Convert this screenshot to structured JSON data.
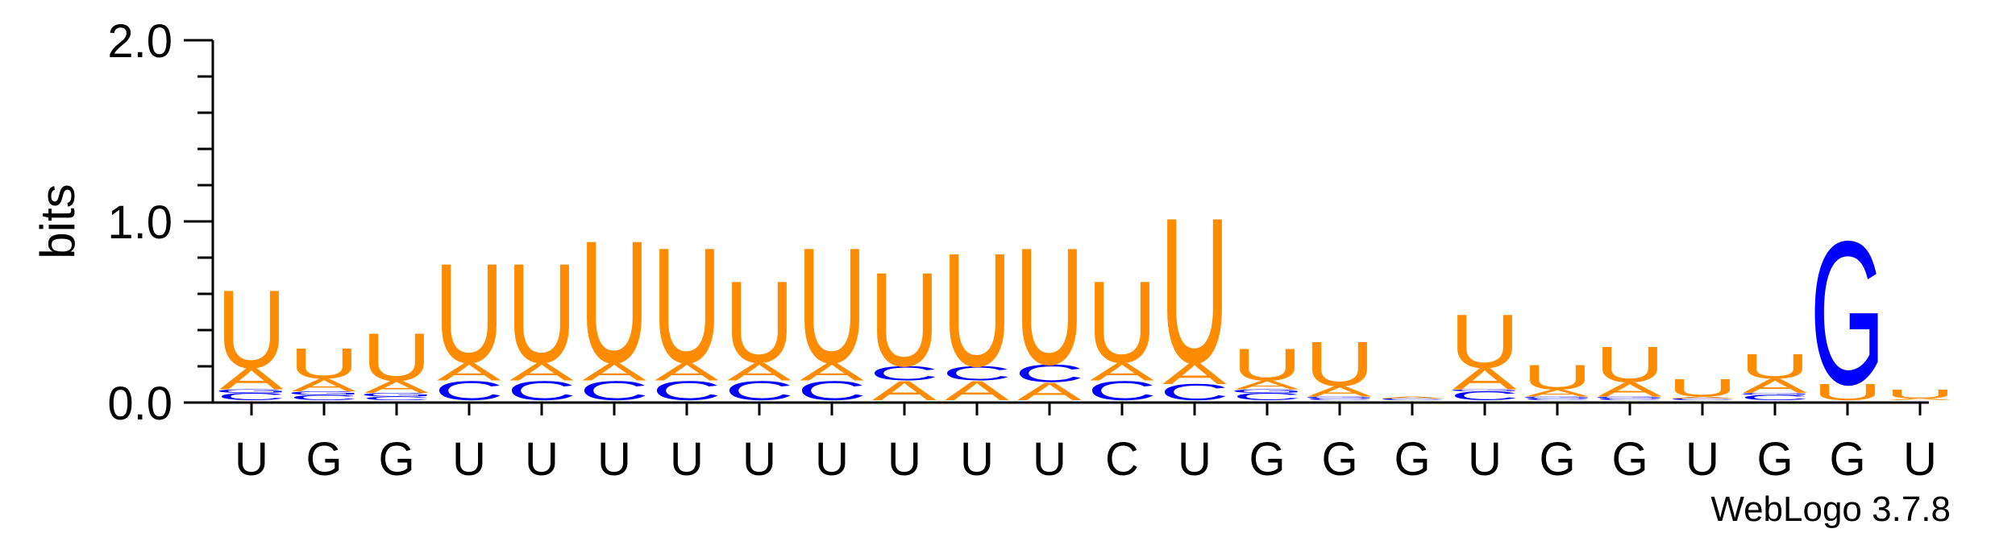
{
  "chart_data": {
    "type": "sequence_logo",
    "ylabel": "bits",
    "ylim": [
      0,
      2.0
    ],
    "yticks": [
      "0.0",
      "1.0",
      "2.0"
    ],
    "credit": "WebLogo 3.7.8",
    "colors": {
      "U": "#ff8c00",
      "A": "#ff8c00",
      "C": "#0000ff",
      "G": "#0000ff"
    },
    "positions": [
      {
        "label": "U",
        "stack": [
          {
            "letter": "C",
            "h": 0.04
          },
          {
            "letter": "G",
            "h": 0.02
          },
          {
            "letter": "A",
            "h": 0.12
          },
          {
            "letter": "U",
            "h": 0.44
          }
        ]
      },
      {
        "label": "G",
        "stack": [
          {
            "letter": "C",
            "h": 0.03
          },
          {
            "letter": "G",
            "h": 0.02
          },
          {
            "letter": "A",
            "h": 0.07
          },
          {
            "letter": "U",
            "h": 0.17
          }
        ]
      },
      {
        "label": "G",
        "stack": [
          {
            "letter": "C",
            "h": 0.02
          },
          {
            "letter": "G",
            "h": 0.02
          },
          {
            "letter": "A",
            "h": 0.07
          },
          {
            "letter": "U",
            "h": 0.27
          }
        ]
      },
      {
        "label": "U",
        "stack": [
          {
            "letter": "C",
            "h": 0.11
          },
          {
            "letter": "A",
            "h": 0.1
          },
          {
            "letter": "U",
            "h": 0.56
          }
        ]
      },
      {
        "label": "U",
        "stack": [
          {
            "letter": "C",
            "h": 0.11
          },
          {
            "letter": "A",
            "h": 0.1
          },
          {
            "letter": "U",
            "h": 0.56
          }
        ]
      },
      {
        "label": "U",
        "stack": [
          {
            "letter": "C",
            "h": 0.11
          },
          {
            "letter": "A",
            "h": 0.1
          },
          {
            "letter": "U",
            "h": 0.69
          }
        ]
      },
      {
        "label": "U",
        "stack": [
          {
            "letter": "C",
            "h": 0.11
          },
          {
            "letter": "A",
            "h": 0.1
          },
          {
            "letter": "U",
            "h": 0.65
          }
        ]
      },
      {
        "label": "U",
        "stack": [
          {
            "letter": "C",
            "h": 0.11
          },
          {
            "letter": "A",
            "h": 0.1
          },
          {
            "letter": "U",
            "h": 0.46
          }
        ]
      },
      {
        "label": "U",
        "stack": [
          {
            "letter": "C",
            "h": 0.11
          },
          {
            "letter": "A",
            "h": 0.1
          },
          {
            "letter": "U",
            "h": 0.65
          }
        ]
      },
      {
        "label": "U",
        "stack": [
          {
            "letter": "A",
            "h": 0.11
          },
          {
            "letter": "C",
            "h": 0.08
          },
          {
            "letter": "U",
            "h": 0.53
          }
        ]
      },
      {
        "label": "U",
        "stack": [
          {
            "letter": "A",
            "h": 0.11
          },
          {
            "letter": "C",
            "h": 0.08
          },
          {
            "letter": "U",
            "h": 0.64
          }
        ]
      },
      {
        "label": "U",
        "stack": [
          {
            "letter": "A",
            "h": 0.1
          },
          {
            "letter": "C",
            "h": 0.1
          },
          {
            "letter": "U",
            "h": 0.66
          }
        ]
      },
      {
        "label": "C",
        "stack": [
          {
            "letter": "C",
            "h": 0.11
          },
          {
            "letter": "A",
            "h": 0.1
          },
          {
            "letter": "U",
            "h": 0.46
          }
        ]
      },
      {
        "label": "U",
        "stack": [
          {
            "letter": "C",
            "h": 0.09
          },
          {
            "letter": "A",
            "h": 0.12
          },
          {
            "letter": "U",
            "h": 0.82
          }
        ]
      },
      {
        "label": "G",
        "stack": [
          {
            "letter": "C",
            "h": 0.04
          },
          {
            "letter": "G",
            "h": 0.02
          },
          {
            "letter": "A",
            "h": 0.05
          },
          {
            "letter": "U",
            "h": 0.18
          }
        ]
      },
      {
        "label": "G",
        "stack": [
          {
            "letter": "C",
            "h": 0.01
          },
          {
            "letter": "G",
            "h": 0.01
          },
          {
            "letter": "A",
            "h": 0.06
          },
          {
            "letter": "U",
            "h": 0.25
          }
        ]
      },
      {
        "label": "G",
        "stack": [
          {
            "letter": "C",
            "h": 0.01
          },
          {
            "letter": "A",
            "h": 0.01
          }
        ]
      },
      {
        "label": "U",
        "stack": [
          {
            "letter": "C",
            "h": 0.05
          },
          {
            "letter": "G",
            "h": 0.01
          },
          {
            "letter": "A",
            "h": 0.12
          },
          {
            "letter": "U",
            "h": 0.3
          }
        ]
      },
      {
        "label": "G",
        "stack": [
          {
            "letter": "C",
            "h": 0.01
          },
          {
            "letter": "G",
            "h": 0.01
          },
          {
            "letter": "A",
            "h": 0.04
          },
          {
            "letter": "U",
            "h": 0.14
          }
        ]
      },
      {
        "label": "G",
        "stack": [
          {
            "letter": "C",
            "h": 0.01
          },
          {
            "letter": "G",
            "h": 0.01
          },
          {
            "letter": "A",
            "h": 0.08
          },
          {
            "letter": "U",
            "h": 0.2
          }
        ]
      },
      {
        "label": "U",
        "stack": [
          {
            "letter": "C",
            "h": 0.01
          },
          {
            "letter": "A",
            "h": 0.01
          },
          {
            "letter": "U",
            "h": 0.1
          }
        ]
      },
      {
        "label": "G",
        "stack": [
          {
            "letter": "C",
            "h": 0.03
          },
          {
            "letter": "G",
            "h": 0.01
          },
          {
            "letter": "A",
            "h": 0.08
          },
          {
            "letter": "U",
            "h": 0.14
          }
        ]
      },
      {
        "label": "G",
        "stack": [
          {
            "letter": "U",
            "h": 0.09
          },
          {
            "letter": "G",
            "h": 0.81
          }
        ]
      },
      {
        "label": "U",
        "stack": [
          {
            "letter": "A",
            "h": 0.01
          },
          {
            "letter": "U",
            "h": 0.05
          }
        ]
      }
    ]
  }
}
